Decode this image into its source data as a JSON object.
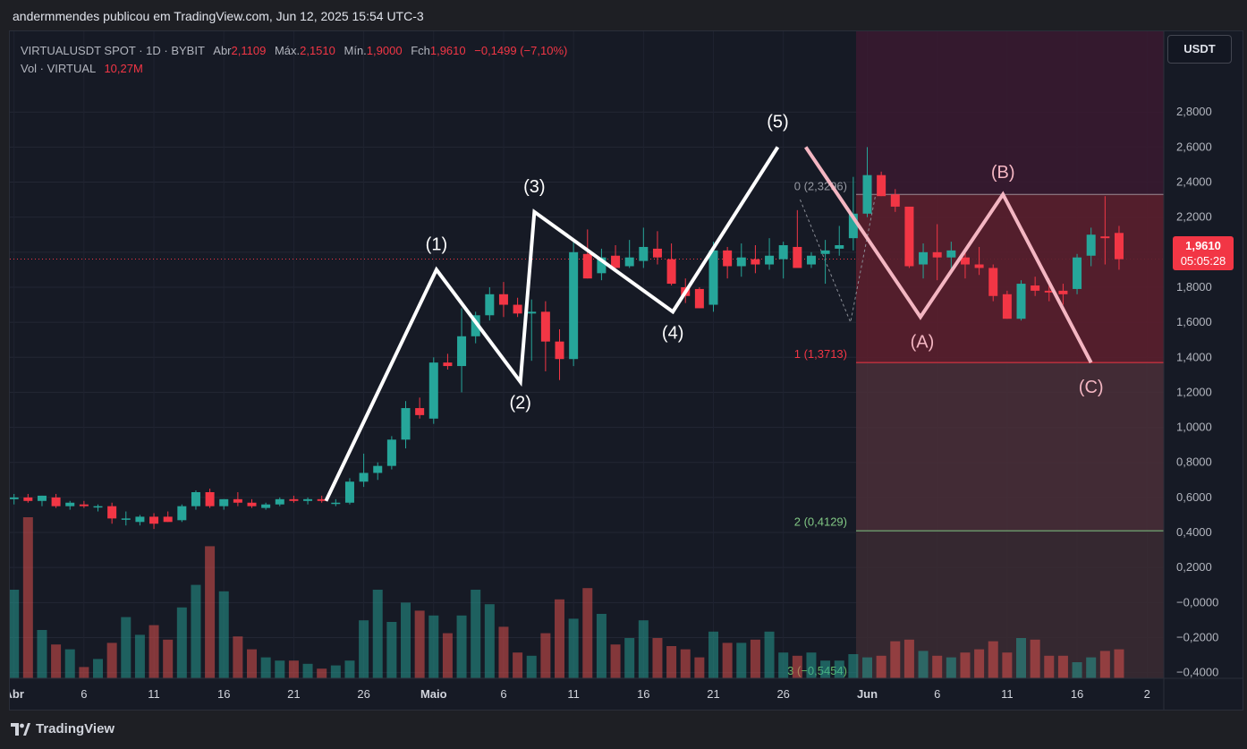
{
  "header": {
    "text": "andermmendes publicou em TradingView.com, Jun 12, 2025 15:54 UTC-3"
  },
  "legend": {
    "symbol": "VIRTUALUSDT SPOT · 1D · BYBIT",
    "open_label": "Abr",
    "open": "2,1109",
    "high_label": "Máx.",
    "high": "2,1510",
    "low_label": "Mín.",
    "low": "1,9000",
    "close_label": "Fch",
    "close": "1,9610",
    "change": "−0,1499 (−7,10%)",
    "vol_label": "Vol · VIRTUAL",
    "vol": "10,27M"
  },
  "currency_button": "USDT",
  "last_price": {
    "value": "1,9610",
    "countdown": "05:05:28"
  },
  "footer": {
    "brand": "TradingView"
  },
  "chart_data": {
    "type": "candlestick",
    "y_ticks": [
      "2,8000",
      "2,6000",
      "2,4000",
      "2,2000",
      "2,0000",
      "1,8000",
      "1,6000",
      "1,4000",
      "1,2000",
      "1,0000",
      "0,8000",
      "0,6000",
      "0,4000",
      "0,2000",
      "−0,0000",
      "−0,2000",
      "−0,4000"
    ],
    "y_tick_values": [
      2.8,
      2.6,
      2.4,
      2.2,
      2.0,
      1.8,
      1.6,
      1.4,
      1.2,
      1.0,
      0.8,
      0.6,
      0.4,
      0.2,
      0,
      -0.2,
      -0.4
    ],
    "ylim": [
      -0.5,
      3.1
    ],
    "x_ticks": [
      {
        "label": "Abr",
        "day": 0,
        "bold": true
      },
      {
        "label": "6",
        "day": 5
      },
      {
        "label": "11",
        "day": 10
      },
      {
        "label": "16",
        "day": 15
      },
      {
        "label": "21",
        "day": 20
      },
      {
        "label": "26",
        "day": 25
      },
      {
        "label": "Maio",
        "day": 30,
        "bold": true
      },
      {
        "label": "6",
        "day": 35
      },
      {
        "label": "11",
        "day": 40
      },
      {
        "label": "16",
        "day": 45
      },
      {
        "label": "21",
        "day": 50
      },
      {
        "label": "26",
        "day": 55
      },
      {
        "label": "Jun",
        "day": 61,
        "bold": true
      },
      {
        "label": "6",
        "day": 66
      },
      {
        "label": "11",
        "day": 71
      },
      {
        "label": "16",
        "day": 76
      },
      {
        "label": "2",
        "day": 81
      }
    ],
    "xlim_days": [
      -0.3,
      82.2
    ],
    "candles": [
      [
        0.59,
        0.62,
        0.56,
        0.6
      ],
      [
        0.6,
        0.62,
        0.57,
        0.58
      ],
      [
        0.58,
        0.61,
        0.55,
        0.61
      ],
      [
        0.6,
        0.62,
        0.54,
        0.55
      ],
      [
        0.55,
        0.58,
        0.53,
        0.57
      ],
      [
        0.56,
        0.58,
        0.54,
        0.55
      ],
      [
        0.55,
        0.56,
        0.52,
        0.55
      ],
      [
        0.55,
        0.57,
        0.45,
        0.48
      ],
      [
        0.48,
        0.52,
        0.44,
        0.48
      ],
      [
        0.46,
        0.5,
        0.44,
        0.49
      ],
      [
        0.49,
        0.51,
        0.42,
        0.45
      ],
      [
        0.49,
        0.52,
        0.46,
        0.46
      ],
      [
        0.47,
        0.56,
        0.46,
        0.55
      ],
      [
        0.55,
        0.64,
        0.53,
        0.63
      ],
      [
        0.63,
        0.65,
        0.54,
        0.55
      ],
      [
        0.55,
        0.59,
        0.53,
        0.59
      ],
      [
        0.59,
        0.63,
        0.55,
        0.57
      ],
      [
        0.57,
        0.59,
        0.54,
        0.55
      ],
      [
        0.54,
        0.57,
        0.53,
        0.56
      ],
      [
        0.56,
        0.6,
        0.55,
        0.59
      ],
      [
        0.59,
        0.61,
        0.57,
        0.58
      ],
      [
        0.58,
        0.6,
        0.56,
        0.59
      ],
      [
        0.59,
        0.61,
        0.57,
        0.58
      ],
      [
        0.57,
        0.59,
        0.55,
        0.57
      ],
      [
        0.57,
        0.71,
        0.56,
        0.69
      ],
      [
        0.69,
        0.85,
        0.66,
        0.74
      ],
      [
        0.74,
        0.8,
        0.7,
        0.78
      ],
      [
        0.78,
        0.95,
        0.76,
        0.93
      ],
      [
        0.93,
        1.15,
        0.88,
        1.11
      ],
      [
        1.11,
        1.17,
        1.05,
        1.07
      ],
      [
        1.05,
        1.4,
        1.02,
        1.37
      ],
      [
        1.37,
        1.42,
        1.33,
        1.35
      ],
      [
        1.35,
        1.68,
        1.2,
        1.52
      ],
      [
        1.52,
        1.66,
        1.48,
        1.64
      ],
      [
        1.64,
        1.8,
        1.61,
        1.76
      ],
      [
        1.76,
        1.83,
        1.63,
        1.7
      ],
      [
        1.7,
        1.74,
        1.63,
        1.65
      ],
      [
        1.65,
        1.73,
        1.38,
        1.66
      ],
      [
        1.66,
        1.72,
        1.32,
        1.49
      ],
      [
        1.49,
        1.56,
        1.27,
        1.39
      ],
      [
        1.39,
        2.06,
        1.35,
        2.0
      ],
      [
        1.99,
        2.13,
        1.85,
        1.85
      ],
      [
        1.88,
        2.02,
        1.84,
        1.97
      ],
      [
        1.98,
        2.04,
        1.91,
        1.91
      ],
      [
        1.92,
        2.07,
        1.91,
        1.97
      ],
      [
        1.95,
        2.14,
        1.91,
        2.03
      ],
      [
        2.02,
        2.12,
        1.93,
        1.97
      ],
      [
        1.96,
        2.05,
        1.81,
        1.82
      ],
      [
        1.8,
        1.85,
        1.71,
        1.75
      ],
      [
        1.79,
        1.8,
        1.68,
        1.68
      ],
      [
        1.7,
        2.06,
        1.66,
        2.01
      ],
      [
        2.01,
        2.03,
        1.85,
        1.92
      ],
      [
        1.92,
        2.05,
        1.86,
        1.97
      ],
      [
        1.96,
        2.04,
        1.88,
        1.93
      ],
      [
        1.93,
        2.08,
        1.9,
        1.98
      ],
      [
        1.96,
        2.06,
        1.85,
        2.04
      ],
      [
        2.03,
        2.24,
        1.93,
        1.91
      ],
      [
        1.93,
        2.0,
        1.91,
        1.98
      ],
      [
        1.99,
        2.07,
        1.82,
        2.01
      ],
      [
        2.02,
        2.15,
        1.98,
        2.04
      ],
      [
        2.08,
        2.43,
        2.01,
        2.22
      ],
      [
        2.22,
        2.6,
        2.2,
        2.44
      ],
      [
        2.44,
        2.46,
        2.32,
        2.32
      ],
      [
        2.33,
        2.36,
        2.23,
        2.26
      ],
      [
        2.26,
        2.25,
        1.91,
        1.92
      ],
      [
        1.93,
        2.05,
        1.85,
        2.0
      ],
      [
        2.0,
        2.16,
        1.84,
        1.97
      ],
      [
        1.97,
        2.06,
        1.9,
        2.01
      ],
      [
        1.97,
        2.01,
        1.85,
        1.93
      ],
      [
        1.93,
        2.03,
        1.87,
        1.91
      ],
      [
        1.91,
        1.93,
        1.72,
        1.75
      ],
      [
        1.76,
        1.78,
        1.62,
        1.62
      ],
      [
        1.62,
        1.84,
        1.61,
        1.82
      ],
      [
        1.81,
        1.86,
        1.75,
        1.78
      ],
      [
        1.78,
        1.85,
        1.72,
        1.77
      ],
      [
        1.78,
        1.82,
        1.7,
        1.76
      ],
      [
        1.79,
        1.99,
        1.76,
        1.97
      ],
      [
        1.98,
        2.14,
        1.92,
        2.1
      ],
      [
        2.09,
        2.32,
        1.93,
        2.08
      ],
      [
        2.11,
        2.15,
        1.9,
        1.96
      ]
    ],
    "volume": [
      0.55,
      1.0,
      0.3,
      0.21,
      0.18,
      0.07,
      0.12,
      0.22,
      0.38,
      0.27,
      0.33,
      0.24,
      0.44,
      0.58,
      0.82,
      0.54,
      0.26,
      0.18,
      0.13,
      0.11,
      0.11,
      0.09,
      0.06,
      0.08,
      0.11,
      0.36,
      0.55,
      0.35,
      0.47,
      0.42,
      0.39,
      0.28,
      0.39,
      0.55,
      0.46,
      0.32,
      0.16,
      0.14,
      0.28,
      0.49,
      0.37,
      0.56,
      0.4,
      0.21,
      0.25,
      0.36,
      0.25,
      0.2,
      0.18,
      0.13,
      0.29,
      0.22,
      0.22,
      0.24,
      0.29,
      0.16,
      0.14,
      0.16,
      0.11,
      0.11,
      0.15,
      0.13,
      0.14,
      0.23,
      0.24,
      0.17,
      0.14,
      0.13,
      0.16,
      0.18,
      0.23,
      0.16,
      0.25,
      0.24,
      0.14,
      0.14,
      0.1,
      0.13,
      0.17,
      0.18
    ],
    "zone": {
      "start_day": 60.2,
      "top": 2.33,
      "mid": 1.37,
      "deep": 0.41
    },
    "fib_labels": [
      {
        "text": "0 (2,3296)",
        "value": 2.3296
      },
      {
        "text": "1 (1,3713)",
        "value": 1.3713
      },
      {
        "text": "2 (0,4129)",
        "value": 0.4129
      },
      {
        "text": "3 (−0,5454)",
        "value": -0.5454
      }
    ],
    "impulse_wave": [
      [
        22.3,
        0.58
      ],
      [
        30.2,
        1.9
      ],
      [
        36.2,
        1.26
      ],
      [
        37.2,
        2.23
      ],
      [
        47.1,
        1.66
      ],
      [
        54.6,
        2.6
      ]
    ],
    "impulse_labels": [
      "(1)",
      "(2)",
      "(3)",
      "(4)",
      "(5)"
    ],
    "corrective_wave": [
      [
        56.6,
        2.6
      ],
      [
        64.8,
        1.63
      ],
      [
        70.7,
        2.33
      ],
      [
        77.0,
        1.37
      ]
    ],
    "corrective_labels": [
      "(A)",
      "(B)",
      "(C)"
    ]
  }
}
